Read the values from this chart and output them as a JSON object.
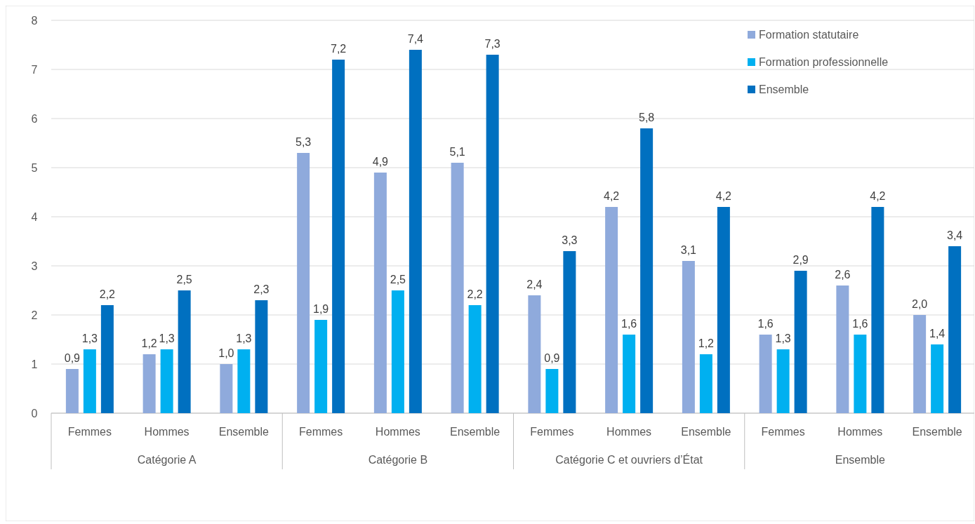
{
  "chart_data": {
    "type": "bar",
    "categories": [
      "Femmes",
      "Hommes",
      "Ensemble",
      "Femmes",
      "Hommes",
      "Ensemble",
      "Femmes",
      "Hommes",
      "Ensemble",
      "Femmes",
      "Hommes",
      "Ensemble"
    ],
    "annotations": [
      "Catégorie A",
      "Catégorie B",
      "Catégorie C et ouvriers d’État",
      "Ensemble"
    ],
    "series": [
      {
        "name": "Formation statutaire",
        "color": "#8faadc",
        "values": [
          0.9,
          1.2,
          1.0,
          5.3,
          4.9,
          5.1,
          2.4,
          4.2,
          3.1,
          1.6,
          2.6,
          2.0
        ],
        "value_labels": [
          "0,9",
          "1,2",
          "1,0",
          "5,3",
          "4,9",
          "5,1",
          "2,4",
          "4,2",
          "3,1",
          "1,6",
          "2,6",
          "2,0"
        ]
      },
      {
        "name": "Formation professionnelle",
        "color": "#00b0f0",
        "values": [
          1.3,
          1.3,
          1.3,
          1.9,
          2.5,
          2.2,
          0.9,
          1.6,
          1.2,
          1.3,
          1.6,
          1.4
        ],
        "value_labels": [
          "1,3",
          "1,3",
          "1,3",
          "1,9",
          "2,5",
          "2,2",
          "0,9",
          "1,6",
          "1,2",
          "1,3",
          "1,6",
          "1,4"
        ]
      },
      {
        "name": "Ensemble",
        "color": "#0070c0",
        "values": [
          2.2,
          2.5,
          2.3,
          7.2,
          7.4,
          7.3,
          3.3,
          5.8,
          4.2,
          2.9,
          4.2,
          3.4
        ],
        "value_labels": [
          "2,2",
          "2,5",
          "2,3",
          "7,2",
          "7,4",
          "7,3",
          "3,3",
          "5,8",
          "4,2",
          "2,9",
          "4,2",
          "3,4"
        ]
      }
    ],
    "ylim": [
      0,
      8
    ],
    "yticks": [
      0,
      1,
      2,
      3,
      4,
      5,
      6,
      7,
      8
    ],
    "grid": "y",
    "legend": "top right"
  }
}
